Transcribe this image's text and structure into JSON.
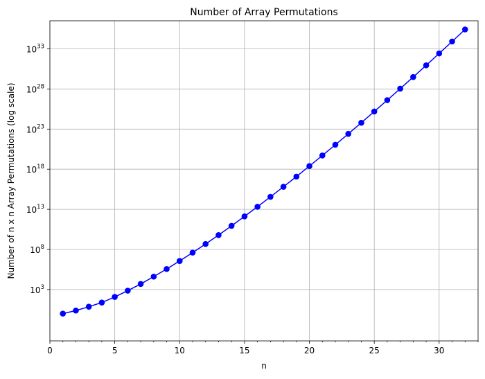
{
  "chart_data": {
    "type": "line",
    "title": "Number of Array Permutations",
    "xlabel": "n",
    "ylabel": "Number of n x n Array Permutations (log scale)",
    "yscale": "log",
    "grid": true,
    "xlim": [
      0,
      33
    ],
    "ylim_log10": [
      -3.4,
      36.5
    ],
    "x_ticks": [
      0,
      5,
      10,
      15,
      20,
      25,
      30
    ],
    "y_ticks_log10": [
      3,
      8,
      13,
      18,
      23,
      28,
      33
    ],
    "y_tick_base": "10",
    "color": "#0000ff",
    "marker": "circle",
    "series": [
      {
        "x": [
          1,
          2,
          3,
          4,
          5,
          6,
          7,
          8,
          9,
          10,
          11,
          12,
          13,
          14,
          15,
          16,
          17,
          18,
          19,
          20,
          21,
          22,
          23,
          24,
          25,
          26,
          27,
          28,
          29,
          30,
          31,
          32
        ],
        "y_log10": [
          0.0,
          0.38,
          0.86,
          1.38,
          2.08,
          2.86,
          3.7,
          4.61,
          5.56,
          6.56,
          7.6,
          8.68,
          9.79,
          10.94,
          12.12,
          13.32,
          14.56,
          15.81,
          17.08,
          18.39,
          19.71,
          21.05,
          22.41,
          23.79,
          25.19,
          26.61,
          28.04,
          29.49,
          30.95,
          32.43,
          33.92,
          35.42
        ]
      }
    ]
  }
}
